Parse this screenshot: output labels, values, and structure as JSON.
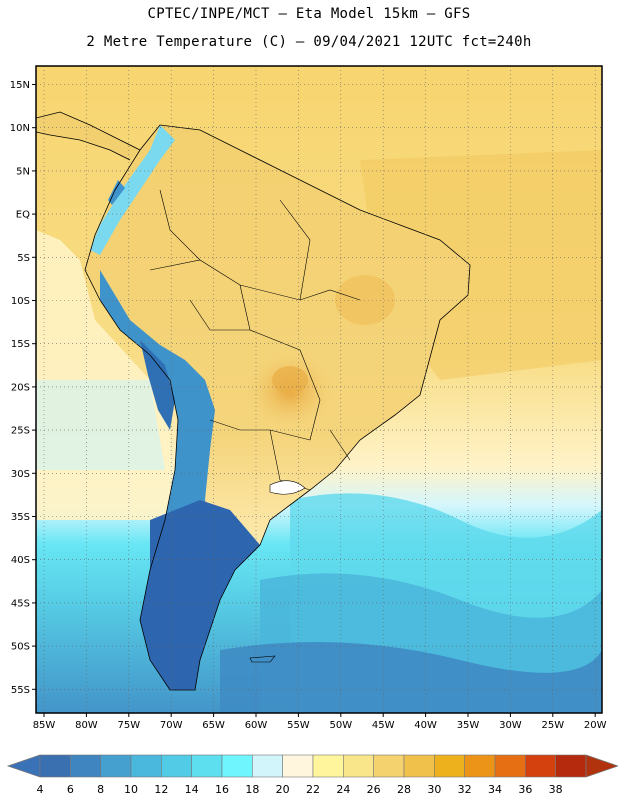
{
  "header": {
    "line1": "CPTEC/INPE/MCT —  Eta Model 15km — GFS",
    "line2": "2 Metre Temperature (C) — 09/04/2021 12UTC fct=240h"
  },
  "map": {
    "latitude_labels": [
      "15N",
      "10N",
      "5N",
      "EQ",
      "5S",
      "10S",
      "15S",
      "20S",
      "25S",
      "30S",
      "35S",
      "40S",
      "45S",
      "50S",
      "55S"
    ],
    "longitude_labels": [
      "85W",
      "80W",
      "75W",
      "70W",
      "65W",
      "60W",
      "55W",
      "50W",
      "45W",
      "40W",
      "35W",
      "30W",
      "25W",
      "20W"
    ]
  },
  "colorbar": {
    "labels": [
      "4",
      "6",
      "8",
      "10",
      "12",
      "14",
      "16",
      "18",
      "20",
      "22",
      "24",
      "26",
      "28",
      "30",
      "32",
      "34",
      "36",
      "38"
    ],
    "colors": [
      "#3a6fb0",
      "#3f86c0",
      "#45a0cf",
      "#4ab8dc",
      "#52cbe6",
      "#5ddff0",
      "#6ff5fd",
      "#d2f5fc",
      "#fff6dd",
      "#fff59c",
      "#f9e58a",
      "#f4d36f",
      "#f0c24c",
      "#eeb11e",
      "#ec9418",
      "#e66f14",
      "#d5400f",
      "#b52a0c"
    ],
    "under_color": "#3a72b8",
    "over_color": "#b0330e"
  },
  "palette": {
    "ocean_warm": "#f6d878",
    "ocean_mid": "#fdf1b5",
    "land_warm": "#f3d379",
    "hot_spot": "#ebb247",
    "andes": "#3d8cc8",
    "south": "#2c68b0"
  }
}
